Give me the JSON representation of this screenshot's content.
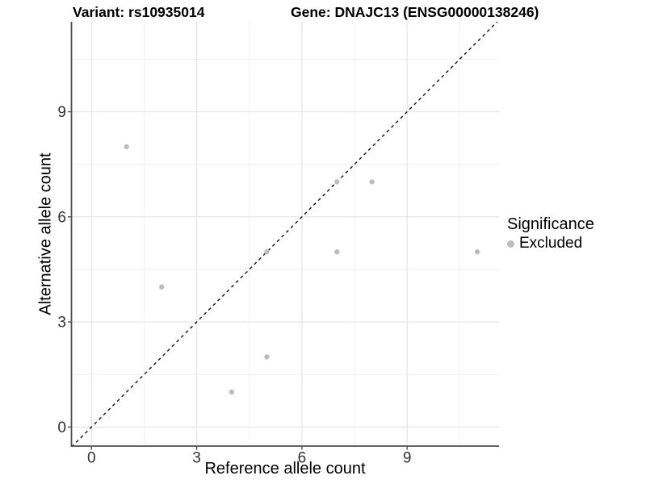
{
  "figure": {
    "title_left": "Variant: rs10935014",
    "title_right": "Gene: DNAJC13 (ENSG00000138246)"
  },
  "chart_data": {
    "type": "scatter",
    "title": "Variant: rs10935014   Gene: DNAJC13 (ENSG00000138246)",
    "xlabel": "Reference allele count",
    "ylabel": "Alternative allele count",
    "xlim": [
      -0.57,
      11.62
    ],
    "ylim": [
      -0.55,
      11.57
    ],
    "x_major_ticks": [
      0,
      3,
      6,
      9
    ],
    "y_major_ticks": [
      0,
      3,
      6,
      9
    ],
    "x_minor_gridlines": [
      1.5,
      4.5,
      7.5,
      10.5
    ],
    "y_minor_gridlines": [
      1.5,
      4.5,
      7.5,
      10.5
    ],
    "grid": true,
    "points": [
      {
        "x": 1,
        "y": 8
      },
      {
        "x": 2,
        "y": 4
      },
      {
        "x": 4,
        "y": 1
      },
      {
        "x": 5,
        "y": 2
      },
      {
        "x": 5,
        "y": 5
      },
      {
        "x": 7,
        "y": 5
      },
      {
        "x": 7,
        "y": 7
      },
      {
        "x": 8,
        "y": 7
      },
      {
        "x": 11,
        "y": 5
      }
    ],
    "identity_line": {
      "style": "dashed",
      "slope": 1,
      "intercept": 0
    },
    "legend": {
      "title": "Significance",
      "position": "right",
      "items": [
        {
          "label": "Excluded",
          "color": "#bdbdbd"
        }
      ]
    },
    "colors": {
      "point": "#bdbdbd",
      "grid_major": "#e4e4e4",
      "grid_minor": "#f1f1f1",
      "axis_line": "#4d4d4d",
      "tick_label": "#303030",
      "identity_line": "#111111",
      "background": "#ffffff"
    }
  }
}
